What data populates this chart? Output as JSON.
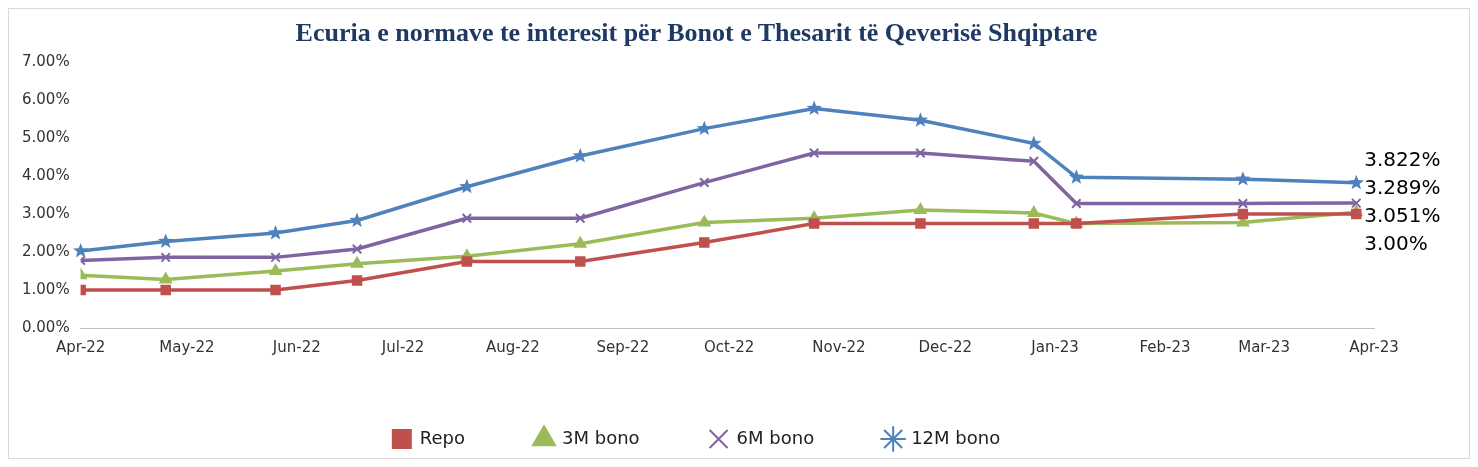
{
  "chart_data": {
    "type": "line",
    "title": "Ecuria e normave te interesit për Bonot e Thesarit të Qeverisë Shqiptare",
    "x": [
      "2022-04-01",
      "2022-04-25",
      "2022-05-26",
      "2022-06-18",
      "2022-07-19",
      "2022-08-20",
      "2022-09-24",
      "2022-10-25",
      "2022-11-24",
      "2022-12-26",
      "2023-01-07",
      "2023-02-23",
      "2023-03-27"
    ],
    "series": [
      {
        "name": "Repo",
        "color": "#c0504d",
        "marker": "square",
        "values": [
          1.0,
          1.0,
          1.0,
          1.25,
          1.75,
          1.75,
          2.25,
          2.75,
          2.75,
          2.75,
          2.75,
          3.0,
          3.0
        ],
        "value_labels": [
          null,
          null,
          null,
          null,
          null,
          null,
          null,
          null,
          null,
          null,
          null,
          null,
          "3.00%"
        ]
      },
      {
        "name": "3M bono",
        "color": "#9bbb59",
        "marker": "triangle",
        "values": [
          1.39,
          1.28,
          1.5,
          1.69,
          1.89,
          2.22,
          2.78,
          2.89,
          3.11,
          3.03,
          2.75,
          2.78,
          3.051
        ],
        "value_labels": [
          null,
          null,
          null,
          null,
          null,
          null,
          null,
          null,
          null,
          null,
          null,
          null,
          "3.051%"
        ]
      },
      {
        "name": "6M bono",
        "color": "#8064a2",
        "marker": "cross",
        "values": [
          1.78,
          1.86,
          1.86,
          2.08,
          2.89,
          2.89,
          3.83,
          4.61,
          4.61,
          4.39,
          3.28,
          3.28,
          3.289
        ],
        "value_labels": [
          null,
          null,
          null,
          null,
          null,
          null,
          null,
          null,
          null,
          null,
          null,
          null,
          "3.289%"
        ]
      },
      {
        "name": "12M bono",
        "color": "#4f81bd",
        "marker": "star",
        "values": [
          2.03,
          2.28,
          2.5,
          2.83,
          3.72,
          4.53,
          5.25,
          5.78,
          5.47,
          4.86,
          3.97,
          3.92,
          3.822
        ],
        "value_labels": [
          null,
          null,
          null,
          null,
          null,
          null,
          null,
          null,
          null,
          null,
          null,
          null,
          "3.822%"
        ]
      }
    ],
    "xlim": [
      "2022-04-01",
      "2023-04-01"
    ],
    "xticks": [
      {
        "value": "2022-04-01",
        "label": "Apr-22"
      },
      {
        "value": "2022-05-01",
        "label": "May-22"
      },
      {
        "value": "2022-06-01",
        "label": "Jun-22"
      },
      {
        "value": "2022-07-01",
        "label": "Jul-22"
      },
      {
        "value": "2022-08-01",
        "label": "Aug-22"
      },
      {
        "value": "2022-09-01",
        "label": "Sep-22"
      },
      {
        "value": "2022-10-01",
        "label": "Oct-22"
      },
      {
        "value": "2022-11-01",
        "label": "Nov-22"
      },
      {
        "value": "2022-12-01",
        "label": "Dec-22"
      },
      {
        "value": "2023-01-01",
        "label": "Jan-23"
      },
      {
        "value": "2023-02-01",
        "label": "Feb-23"
      },
      {
        "value": "2023-03-01",
        "label": "Mar-23"
      },
      {
        "value": "2023-04-01",
        "label": "Apr-23"
      }
    ],
    "ylim": [
      0,
      7
    ],
    "yticks": [
      {
        "value": 0,
        "label": "0.00%"
      },
      {
        "value": 1,
        "label": "1.00%"
      },
      {
        "value": 2,
        "label": "2.00%"
      },
      {
        "value": 3,
        "label": "3.00%"
      },
      {
        "value": 4,
        "label": "4.00%"
      },
      {
        "value": 5,
        "label": "5.00%"
      },
      {
        "value": 6,
        "label": "6.00%"
      },
      {
        "value": 7,
        "label": "7.00%"
      }
    ],
    "grid": false,
    "legend": "bottom",
    "line_style": "solid"
  }
}
